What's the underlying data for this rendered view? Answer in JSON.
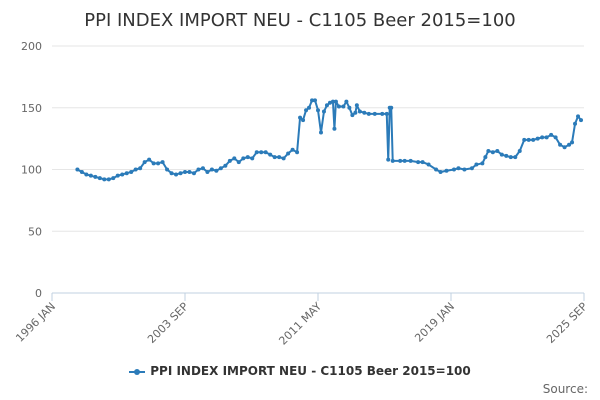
{
  "chart_data": {
    "type": "line",
    "title": "PPI INDEX IMPORT NEU - C1105 Beer 2015=100",
    "xlabel": "",
    "ylabel": "",
    "x_range": [
      "1996-01",
      "2025-09"
    ],
    "ylim": [
      0,
      200
    ],
    "y_ticks": [
      0,
      50,
      100,
      150,
      200
    ],
    "x_tick_labels": [
      "1996 JAN",
      "2003 SEP",
      "2011 MAY",
      "2019 JAN",
      "2025 SEP"
    ],
    "grid": "horizontal",
    "legend_position": "bottom",
    "color": "#2b7bb9",
    "series": [
      {
        "name": "PPI INDEX IMPORT NEU - C1105 Beer 2015=100",
        "points": [
          [
            "1997-06",
            100
          ],
          [
            "1997-09",
            98
          ],
          [
            "1997-12",
            96
          ],
          [
            "1998-03",
            95
          ],
          [
            "1998-06",
            94
          ],
          [
            "1998-09",
            93
          ],
          [
            "1998-12",
            92
          ],
          [
            "1999-03",
            92
          ],
          [
            "1999-06",
            93
          ],
          [
            "1999-09",
            95
          ],
          [
            "1999-12",
            96
          ],
          [
            "2000-03",
            97
          ],
          [
            "2000-06",
            98
          ],
          [
            "2000-09",
            100
          ],
          [
            "2000-12",
            101
          ],
          [
            "2001-03",
            106
          ],
          [
            "2001-06",
            108
          ],
          [
            "2001-09",
            105
          ],
          [
            "2001-12",
            105
          ],
          [
            "2002-03",
            106
          ],
          [
            "2002-06",
            100
          ],
          [
            "2002-09",
            97
          ],
          [
            "2002-12",
            96
          ],
          [
            "2003-03",
            97
          ],
          [
            "2003-06",
            98
          ],
          [
            "2003-09",
            98
          ],
          [
            "2003-12",
            97
          ],
          [
            "2004-03",
            100
          ],
          [
            "2004-06",
            101
          ],
          [
            "2004-09",
            98
          ],
          [
            "2004-12",
            100
          ],
          [
            "2005-03",
            99
          ],
          [
            "2005-06",
            101
          ],
          [
            "2005-09",
            103
          ],
          [
            "2005-12",
            107
          ],
          [
            "2006-03",
            109
          ],
          [
            "2006-06",
            106
          ],
          [
            "2006-09",
            109
          ],
          [
            "2006-12",
            110
          ],
          [
            "2007-03",
            109
          ],
          [
            "2007-06",
            114
          ],
          [
            "2007-09",
            114
          ],
          [
            "2007-12",
            114
          ],
          [
            "2008-03",
            112
          ],
          [
            "2008-06",
            110
          ],
          [
            "2008-09",
            110
          ],
          [
            "2008-12",
            109
          ],
          [
            "2009-03",
            113
          ],
          [
            "2009-06",
            116
          ],
          [
            "2009-09",
            114
          ],
          [
            "2009-11",
            142
          ],
          [
            "2010-01",
            140
          ],
          [
            "2010-03",
            148
          ],
          [
            "2010-05",
            150
          ],
          [
            "2010-07",
            156
          ],
          [
            "2010-09",
            156
          ],
          [
            "2010-11",
            148
          ],
          [
            "2011-01",
            130
          ],
          [
            "2011-03",
            147
          ],
          [
            "2011-05",
            152
          ],
          [
            "2011-07",
            154
          ],
          [
            "2011-09",
            155
          ],
          [
            "2011-10",
            133
          ],
          [
            "2011-11",
            155
          ],
          [
            "2012-01",
            151
          ],
          [
            "2012-04",
            151
          ],
          [
            "2012-06",
            155
          ],
          [
            "2012-08",
            150
          ],
          [
            "2012-10",
            144
          ],
          [
            "2012-12",
            146
          ],
          [
            "2013-01",
            152
          ],
          [
            "2013-03",
            147
          ],
          [
            "2013-06",
            146
          ],
          [
            "2013-09",
            145
          ],
          [
            "2014-01",
            145
          ],
          [
            "2014-06",
            145
          ],
          [
            "2014-09",
            145
          ],
          [
            "2014-10",
            108
          ],
          [
            "2014-11",
            150
          ],
          [
            "2014-12",
            150
          ],
          [
            "2015-01",
            107
          ],
          [
            "2015-06",
            107
          ],
          [
            "2015-09",
            107
          ],
          [
            "2016-01",
            107
          ],
          [
            "2016-06",
            106
          ],
          [
            "2016-09",
            106
          ],
          [
            "2017-01",
            104
          ],
          [
            "2017-06",
            100
          ],
          [
            "2017-09",
            98
          ],
          [
            "2018-01",
            99
          ],
          [
            "2018-06",
            100
          ],
          [
            "2018-09",
            101
          ],
          [
            "2019-01",
            100
          ],
          [
            "2019-06",
            101
          ],
          [
            "2019-09",
            104
          ],
          [
            "2020-01",
            105
          ],
          [
            "2020-03",
            110
          ],
          [
            "2020-05",
            115
          ],
          [
            "2020-08",
            114
          ],
          [
            "2020-11",
            115
          ],
          [
            "2021-02",
            112
          ],
          [
            "2021-05",
            111
          ],
          [
            "2021-08",
            110
          ],
          [
            "2021-11",
            110
          ],
          [
            "2022-02",
            115
          ],
          [
            "2022-05",
            124
          ],
          [
            "2022-08",
            124
          ],
          [
            "2022-11",
            124
          ],
          [
            "2023-02",
            125
          ],
          [
            "2023-05",
            126
          ],
          [
            "2023-08",
            126
          ],
          [
            "2023-11",
            128
          ],
          [
            "2024-02",
            126
          ],
          [
            "2024-05",
            120
          ],
          [
            "2024-08",
            118
          ],
          [
            "2024-11",
            120
          ],
          [
            "2025-01",
            122
          ],
          [
            "2025-03",
            137
          ],
          [
            "2025-05",
            143
          ],
          [
            "2025-07",
            140
          ]
        ]
      }
    ]
  },
  "source_label": "Source:"
}
